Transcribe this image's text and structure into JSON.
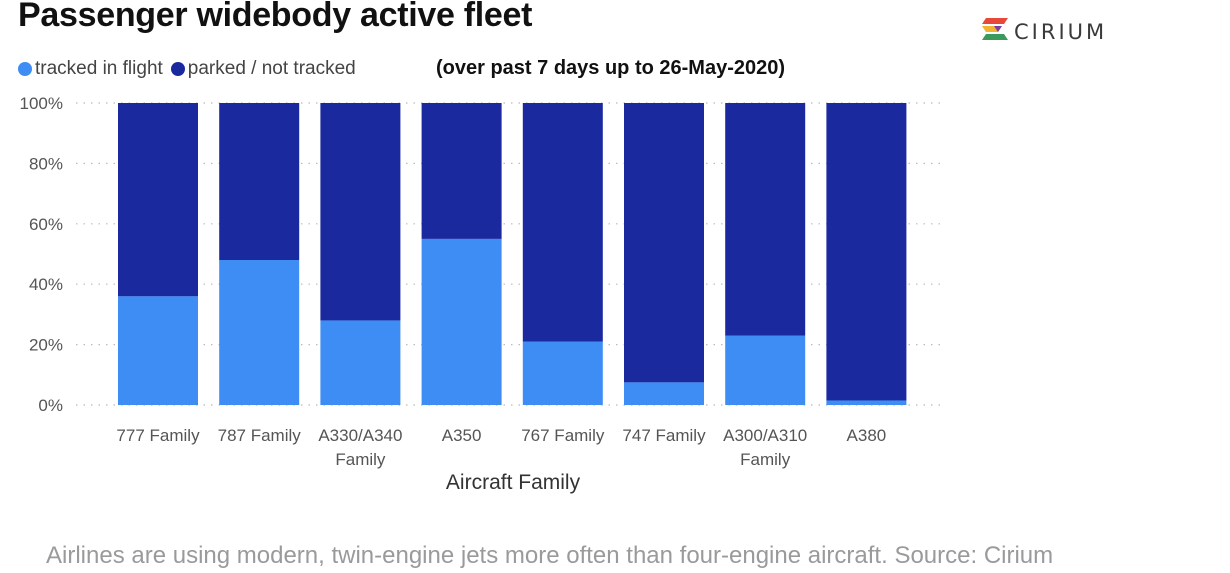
{
  "title": "Passenger widebody active fleet",
  "subtitle": "(over past 7 days up to 26-May-2020)",
  "logo_text": "CIRIUM",
  "caption": "Airlines are using modern, twin-engine jets more often than four-engine aircraft. Source: Cirium",
  "colors": {
    "tracked": "#3d8df5",
    "parked": "#1a2a9e",
    "grid": "#bbbbbb",
    "tick_text": "#555555"
  },
  "chart_data": {
    "type": "bar",
    "stacked": true,
    "categories": [
      "777 Family",
      "787 Family",
      "A330/A340 Family",
      "A350",
      "767 Family",
      "747 Family",
      "A300/A310 Family",
      "A380"
    ],
    "category_lines": [
      [
        "777 Family"
      ],
      [
        "787 Family"
      ],
      [
        "A330/A340",
        "Family"
      ],
      [
        "A350"
      ],
      [
        "767 Family"
      ],
      [
        "747 Family"
      ],
      [
        "A300/A310",
        "Family"
      ],
      [
        "A380"
      ]
    ],
    "series": [
      {
        "name": "tracked in flight",
        "values": [
          36,
          48,
          28,
          55,
          21,
          7.5,
          23,
          1.5
        ]
      },
      {
        "name": "parked / not tracked",
        "values": [
          64,
          52,
          72,
          45,
          79,
          92.5,
          77,
          98.5
        ]
      }
    ],
    "xlabel": "Aircraft Family",
    "ylabel": "",
    "ylim": [
      0,
      100
    ],
    "yticks": [
      0,
      20,
      40,
      60,
      80,
      100
    ],
    "ytick_labels": [
      "0%",
      "20%",
      "40%",
      "60%",
      "80%",
      "100%"
    ],
    "grid": true,
    "legend_position": "top-left"
  }
}
